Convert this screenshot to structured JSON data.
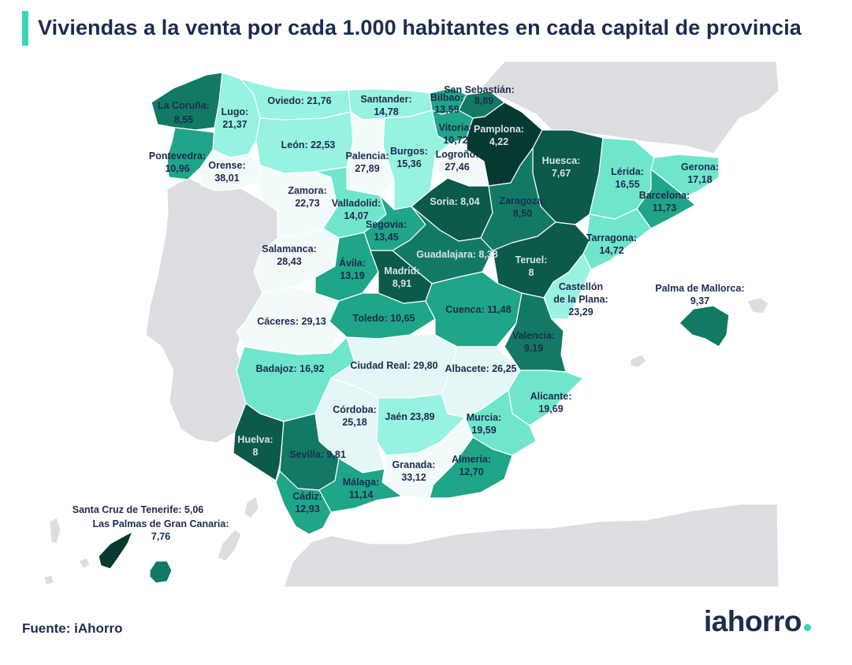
{
  "title": "Viviendas a la venta por cada 1.000 habitantes en cada capital de provincia",
  "source": "Fuente: iAhorro",
  "logo": "iahorro",
  "colors": {
    "accent": "#3ad6b4",
    "text": "#1d2b4f",
    "neighbor_land": "#dcdde0",
    "scale": [
      "#f2fafa",
      "#e4f6f5",
      "#97f2e0",
      "#6fe6cb",
      "#1fa588",
      "#127a64",
      "#0b5a4a",
      "#06392f"
    ]
  },
  "regions": [
    {
      "name": "La Coruña",
      "value": "8,55"
    },
    {
      "name": "Lugo",
      "value": "21,37"
    },
    {
      "name": "Oviedo",
      "value": "21,76"
    },
    {
      "name": "Santander",
      "value": "14,78"
    },
    {
      "name": "Bilbao",
      "value": "13,59"
    },
    {
      "name": "San Sebastián",
      "value": "8,89"
    },
    {
      "name": "Vitoria",
      "value": "10,72"
    },
    {
      "name": "Pamplona",
      "value": "4,22"
    },
    {
      "name": "Pontevedra",
      "value": "10,96"
    },
    {
      "name": "Orense",
      "value": "38,01"
    },
    {
      "name": "León",
      "value": "22,53"
    },
    {
      "name": "Palencia",
      "value": "27,89"
    },
    {
      "name": "Burgos",
      "value": "15,36"
    },
    {
      "name": "Logroño",
      "value": "27,46"
    },
    {
      "name": "Huesca",
      "value": "7,67"
    },
    {
      "name": "Lérida",
      "value": "16,55"
    },
    {
      "name": "Gerona",
      "value": "17,18"
    },
    {
      "name": "Barcelona",
      "value": "11,73"
    },
    {
      "name": "Zamora",
      "value": "22,73"
    },
    {
      "name": "Valladolid",
      "value": "14,07"
    },
    {
      "name": "Soria",
      "value": "8,04"
    },
    {
      "name": "Zaragoza",
      "value": "8,50"
    },
    {
      "name": "Segovia",
      "value": "13,45"
    },
    {
      "name": "Salamanca",
      "value": "28,43"
    },
    {
      "name": "Ávila",
      "value": "13,19"
    },
    {
      "name": "Guadalajara",
      "value": "8,38"
    },
    {
      "name": "Tarragona",
      "value": "14,72"
    },
    {
      "name": "Teruel",
      "value": "8"
    },
    {
      "name": "Madrid",
      "value": "8,91"
    },
    {
      "name": "Castellón de la Plana",
      "value": "23,29"
    },
    {
      "name": "Palma de Mallorca",
      "value": "9,37"
    },
    {
      "name": "Cáceres",
      "value": "29,13"
    },
    {
      "name": "Toledo",
      "value": "10,65"
    },
    {
      "name": "Cuenca",
      "value": "11,48"
    },
    {
      "name": "Valencia",
      "value": "9,19"
    },
    {
      "name": "Badajoz",
      "value": "16,92"
    },
    {
      "name": "Ciudad Real",
      "value": "29,80"
    },
    {
      "name": "Albacete",
      "value": "26,25"
    },
    {
      "name": "Alicante",
      "value": "19,69"
    },
    {
      "name": "Córdoba",
      "value": "25,18"
    },
    {
      "name": "Jaén",
      "value": "23,89"
    },
    {
      "name": "Murcia",
      "value": "19,59"
    },
    {
      "name": "Huelva",
      "value": "8"
    },
    {
      "name": "Sevilla",
      "value": "9,81"
    },
    {
      "name": "Granada",
      "value": "33,12"
    },
    {
      "name": "Almería",
      "value": "12,70"
    },
    {
      "name": "Málaga",
      "value": "11,14"
    },
    {
      "name": "Cádiz",
      "value": "12,93"
    },
    {
      "name": "Santa Cruz de Tenerife",
      "value": "5,06"
    },
    {
      "name": "Las Palmas de Gran Canaria",
      "value": "7,76"
    }
  ],
  "labels": [
    {
      "text": "La Coruña:",
      "light": false
    },
    {
      "text": "8,55",
      "light": false
    },
    {
      "text": "Lugo:",
      "light": false
    },
    {
      "text": "21,37",
      "light": false
    },
    {
      "text": "Oviedo: 21,76",
      "light": false
    },
    {
      "text": "Santander:",
      "light": false
    },
    {
      "text": "14,78",
      "light": false
    },
    {
      "text": "San Sebastián:",
      "light": false
    },
    {
      "text": "Bilbao:",
      "light": false
    },
    {
      "text": "8,89",
      "light": false
    },
    {
      "text": "13,59",
      "light": false
    },
    {
      "text": "Vitoria:",
      "light": false
    },
    {
      "text": "10,72",
      "light": false
    },
    {
      "text": "Pamplona:",
      "light": true
    },
    {
      "text": "4,22",
      "light": true
    },
    {
      "text": "Pontevedra:",
      "light": false
    },
    {
      "text": "10,96",
      "light": false
    },
    {
      "text": "Orense:",
      "light": false
    },
    {
      "text": "38,01",
      "light": false
    },
    {
      "text": "León: 22,53",
      "light": false
    },
    {
      "text": "Palencia:",
      "light": false
    },
    {
      "text": "27,89",
      "light": false
    },
    {
      "text": "Burgos:",
      "light": false
    },
    {
      "text": "15,36",
      "light": false
    },
    {
      "text": "Logroño:",
      "light": false
    },
    {
      "text": "27,46",
      "light": false
    },
    {
      "text": "Huesca:",
      "light": true
    },
    {
      "text": "7,67",
      "light": true
    },
    {
      "text": "Lérida:",
      "light": false
    },
    {
      "text": "16,55",
      "light": false
    },
    {
      "text": "Gerona:",
      "light": false
    },
    {
      "text": "17,18",
      "light": false
    },
    {
      "text": "Barcelona:",
      "light": false
    },
    {
      "text": "11,73",
      "light": false
    },
    {
      "text": "Zamora:",
      "light": false
    },
    {
      "text": "22,73",
      "light": false
    },
    {
      "text": "Valladolid:",
      "light": false
    },
    {
      "text": "14,07",
      "light": false
    },
    {
      "text": "Soria: 8,04",
      "light": true
    },
    {
      "text": "Zaragoza:",
      "light": false
    },
    {
      "text": "8,50",
      "light": false
    },
    {
      "text": "Segovia:",
      "light": false
    },
    {
      "text": "13,45",
      "light": false
    },
    {
      "text": "Salamanca:",
      "light": false
    },
    {
      "text": "28,43",
      "light": false
    },
    {
      "text": "Ávila:",
      "light": false
    },
    {
      "text": "13,19",
      "light": false
    },
    {
      "text": "Guadalajara: 8,38",
      "light": true
    },
    {
      "text": "Tarragona:",
      "light": false
    },
    {
      "text": "14,72",
      "light": false
    },
    {
      "text": "Teruel:",
      "light": true
    },
    {
      "text": "8",
      "light": true
    },
    {
      "text": "Madrid:",
      "light": true
    },
    {
      "text": "8,91",
      "light": true
    },
    {
      "text": "Castellón",
      "light": false
    },
    {
      "text": "de la Plana:",
      "light": false
    },
    {
      "text": "23,29",
      "light": false
    },
    {
      "text": "Palma de Mallorca:",
      "light": false
    },
    {
      "text": "9,37",
      "light": false
    },
    {
      "text": "Cáceres: 29,13",
      "light": false
    },
    {
      "text": "Toledo: 10,65",
      "light": false
    },
    {
      "text": "Cuenca: 11,48",
      "light": false
    },
    {
      "text": "Valencia:",
      "light": false
    },
    {
      "text": "9,19",
      "light": false
    },
    {
      "text": "Badajoz: 16,92",
      "light": false
    },
    {
      "text": "Ciudad Real: 29,80",
      "light": false
    },
    {
      "text": "Albacete: 26,25",
      "light": false
    },
    {
      "text": "Alicante:",
      "light": false
    },
    {
      "text": "19,69",
      "light": false
    },
    {
      "text": "Córdoba:",
      "light": false
    },
    {
      "text": "25,18",
      "light": false
    },
    {
      "text": "Jaén 23,89",
      "light": false
    },
    {
      "text": "Murcia:",
      "light": false
    },
    {
      "text": "19,59",
      "light": false
    },
    {
      "text": "Huelva:",
      "light": true
    },
    {
      "text": "8",
      "light": true
    },
    {
      "text": "Sevilla: 9,81",
      "light": false
    },
    {
      "text": "Granada:",
      "light": false
    },
    {
      "text": "33,12",
      "light": false
    },
    {
      "text": "Almería:",
      "light": false
    },
    {
      "text": "12,70",
      "light": false
    },
    {
      "text": "Málaga:",
      "light": false
    },
    {
      "text": "11,14",
      "light": false
    },
    {
      "text": "Cádiz:",
      "light": false
    },
    {
      "text": "12,93",
      "light": false
    },
    {
      "text": "Santa Cruz de Tenerife: 5,06",
      "light": false
    },
    {
      "text": "Las Palmas de Gran Canaria:",
      "light": false
    },
    {
      "text": "7,76",
      "light": false
    }
  ]
}
